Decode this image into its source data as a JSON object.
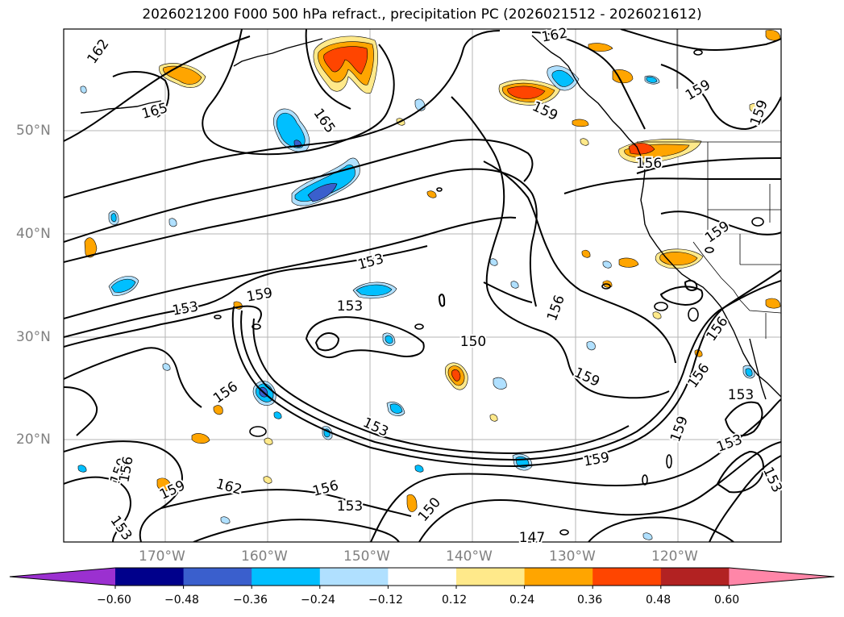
{
  "title": "2026021200 F000 500 hPa refract., precipitation PC (2026021512 - 2026021612)",
  "axes": {
    "lat_labels": [
      "50°N",
      "40°N",
      "30°N",
      "20°N"
    ],
    "lon_labels": [
      "170°W",
      "160°W",
      "150°W",
      "140°W",
      "130°W",
      "120°W"
    ]
  },
  "contour_labels": [
    "162",
    "165",
    "165",
    "162",
    "159",
    "159",
    "159",
    "156",
    "159",
    "153",
    "159",
    "153",
    "153",
    "150",
    "156",
    "159",
    "156",
    "153",
    "159",
    "156",
    "153",
    "159",
    "156",
    "153",
    "150",
    "153",
    "159",
    "162",
    "156",
    "153",
    "150",
    "156",
    "147",
    "153"
  ],
  "colorbar": {
    "ticks": [
      "−0.60",
      "−0.48",
      "−0.36",
      "−0.24",
      "−0.12",
      "0.12",
      "0.24",
      "0.36",
      "0.48",
      "0.60"
    ],
    "colors": [
      "#9b30d0",
      "#00008b",
      "#3a5fcd",
      "#00bfff",
      "#b0e0ff",
      "#ffffff",
      "#ffe98a",
      "#ffa500",
      "#ff4500",
      "#b22222",
      "#ff86a8"
    ]
  }
}
